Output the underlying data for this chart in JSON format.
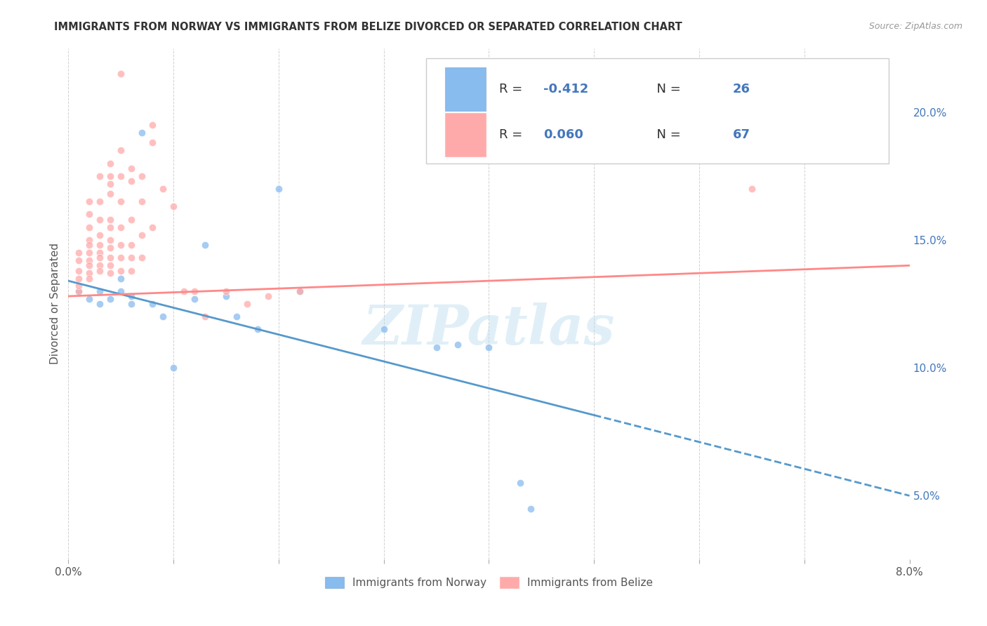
{
  "title": "IMMIGRANTS FROM NORWAY VS IMMIGRANTS FROM BELIZE DIVORCED OR SEPARATED CORRELATION CHART",
  "source": "Source: ZipAtlas.com",
  "ylabel": "Divorced or Separated",
  "y_ticks_right": [
    0.05,
    0.1,
    0.15,
    0.2
  ],
  "y_tick_labels_right": [
    "5.0%",
    "10.0%",
    "15.0%",
    "20.0%"
  ],
  "xlim": [
    0.0,
    0.08
  ],
  "ylim": [
    0.025,
    0.225
  ],
  "norway_scatter": [
    [
      0.001,
      0.13
    ],
    [
      0.002,
      0.127
    ],
    [
      0.003,
      0.13
    ],
    [
      0.003,
      0.125
    ],
    [
      0.004,
      0.127
    ],
    [
      0.005,
      0.135
    ],
    [
      0.005,
      0.13
    ],
    [
      0.006,
      0.128
    ],
    [
      0.006,
      0.125
    ],
    [
      0.007,
      0.192
    ],
    [
      0.008,
      0.125
    ],
    [
      0.009,
      0.12
    ],
    [
      0.01,
      0.1
    ],
    [
      0.012,
      0.127
    ],
    [
      0.013,
      0.148
    ],
    [
      0.015,
      0.128
    ],
    [
      0.016,
      0.12
    ],
    [
      0.018,
      0.115
    ],
    [
      0.02,
      0.17
    ],
    [
      0.022,
      0.13
    ],
    [
      0.03,
      0.115
    ],
    [
      0.035,
      0.108
    ],
    [
      0.037,
      0.109
    ],
    [
      0.04,
      0.108
    ],
    [
      0.043,
      0.055
    ],
    [
      0.044,
      0.045
    ]
  ],
  "belize_scatter": [
    [
      0.001,
      0.13
    ],
    [
      0.001,
      0.145
    ],
    [
      0.001,
      0.142
    ],
    [
      0.001,
      0.138
    ],
    [
      0.001,
      0.135
    ],
    [
      0.001,
      0.132
    ],
    [
      0.002,
      0.165
    ],
    [
      0.002,
      0.16
    ],
    [
      0.002,
      0.155
    ],
    [
      0.002,
      0.15
    ],
    [
      0.002,
      0.148
    ],
    [
      0.002,
      0.145
    ],
    [
      0.002,
      0.142
    ],
    [
      0.002,
      0.14
    ],
    [
      0.002,
      0.137
    ],
    [
      0.002,
      0.135
    ],
    [
      0.003,
      0.175
    ],
    [
      0.003,
      0.165
    ],
    [
      0.003,
      0.158
    ],
    [
      0.003,
      0.152
    ],
    [
      0.003,
      0.148
    ],
    [
      0.003,
      0.145
    ],
    [
      0.003,
      0.143
    ],
    [
      0.003,
      0.14
    ],
    [
      0.003,
      0.138
    ],
    [
      0.004,
      0.18
    ],
    [
      0.004,
      0.175
    ],
    [
      0.004,
      0.172
    ],
    [
      0.004,
      0.168
    ],
    [
      0.004,
      0.158
    ],
    [
      0.004,
      0.155
    ],
    [
      0.004,
      0.15
    ],
    [
      0.004,
      0.147
    ],
    [
      0.004,
      0.143
    ],
    [
      0.004,
      0.14
    ],
    [
      0.004,
      0.137
    ],
    [
      0.005,
      0.215
    ],
    [
      0.005,
      0.185
    ],
    [
      0.005,
      0.175
    ],
    [
      0.005,
      0.165
    ],
    [
      0.005,
      0.155
    ],
    [
      0.005,
      0.148
    ],
    [
      0.005,
      0.143
    ],
    [
      0.005,
      0.138
    ],
    [
      0.006,
      0.178
    ],
    [
      0.006,
      0.173
    ],
    [
      0.006,
      0.158
    ],
    [
      0.006,
      0.148
    ],
    [
      0.006,
      0.143
    ],
    [
      0.006,
      0.138
    ],
    [
      0.007,
      0.175
    ],
    [
      0.007,
      0.165
    ],
    [
      0.007,
      0.152
    ],
    [
      0.007,
      0.143
    ],
    [
      0.008,
      0.195
    ],
    [
      0.008,
      0.188
    ],
    [
      0.008,
      0.155
    ],
    [
      0.009,
      0.17
    ],
    [
      0.01,
      0.163
    ],
    [
      0.011,
      0.13
    ],
    [
      0.012,
      0.13
    ],
    [
      0.013,
      0.12
    ],
    [
      0.015,
      0.13
    ],
    [
      0.017,
      0.125
    ],
    [
      0.019,
      0.128
    ],
    [
      0.022,
      0.13
    ],
    [
      0.065,
      0.17
    ]
  ],
  "norway_line_x": [
    0.0,
    0.08
  ],
  "norway_line_y": [
    0.134,
    0.05
  ],
  "norway_dashed_from": 0.05,
  "belize_line_x": [
    0.0,
    0.08
  ],
  "belize_line_y": [
    0.128,
    0.14
  ],
  "norway_color": "#88bbee",
  "belize_color": "#ffaaaa",
  "norway_line_color": "#5599cc",
  "belize_line_color": "#ff8888",
  "watermark": "ZIPatlas",
  "background_color": "#ffffff",
  "grid_color": "#cccccc",
  "scatter_size": 55,
  "scatter_alpha": 0.75,
  "legend_r1": "R = -0.412   N = 26",
  "legend_r2": "R = 0.060   N = 67",
  "legend_r1_val": "-0.412",
  "legend_r1_n": "26",
  "legend_r2_val": "0.060",
  "legend_r2_n": "67",
  "legend_color": "#4477bb"
}
